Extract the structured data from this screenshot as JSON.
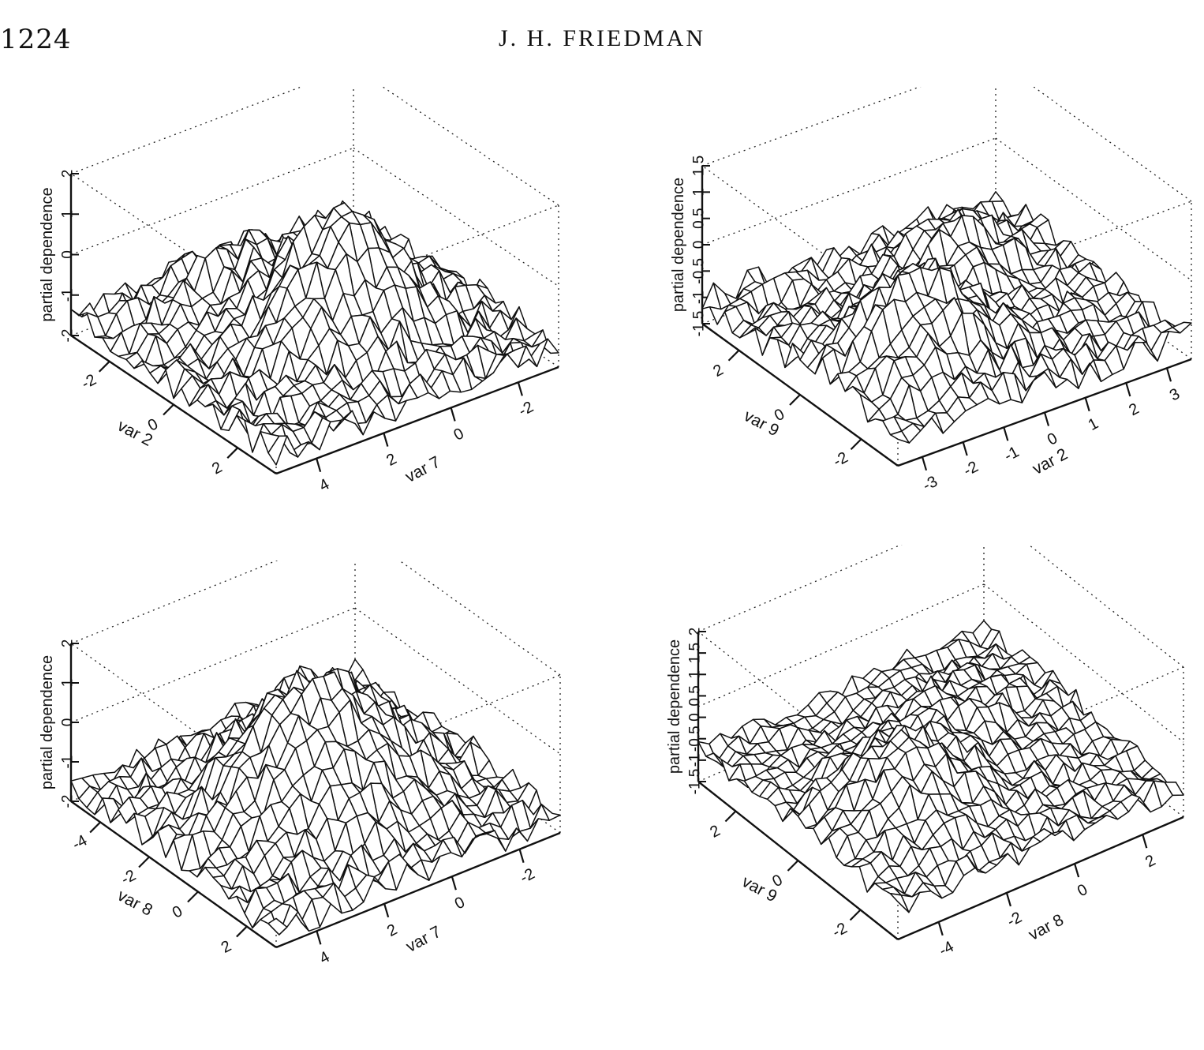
{
  "header": {
    "page_number": "1224",
    "author": "J. H. FRIEDMAN"
  },
  "chart_data": [
    {
      "type": "surface",
      "zlabel": "partial dependence",
      "zticks": [
        "-2",
        "-1",
        "0",
        "1",
        "2"
      ],
      "zrange": [
        -2,
        2
      ],
      "left_axis": {
        "label": "var 2",
        "ticks": [
          "-2",
          "0",
          "2"
        ]
      },
      "right_axis": {
        "label": "var 7",
        "ticks": [
          "4",
          "2",
          "0",
          "-2"
        ]
      }
    },
    {
      "type": "surface",
      "zlabel": "partial dependence",
      "zticks": [
        "-1.5",
        "-1",
        "-0.5",
        "0",
        "0.5",
        "1",
        "1.5"
      ],
      "zrange": [
        -1.5,
        1.5
      ],
      "left_axis": {
        "label": "var 9",
        "ticks": [
          "2",
          "0",
          "-2"
        ]
      },
      "right_axis": {
        "label": "var 2",
        "ticks": [
          "-3",
          "-2",
          "-1",
          "0",
          "1",
          "2",
          "3"
        ]
      }
    },
    {
      "type": "surface",
      "zlabel": "partial dependence",
      "zticks": [
        "-2",
        "-1",
        "0",
        "1",
        "2"
      ],
      "zrange": [
        -2,
        2
      ],
      "left_axis": {
        "label": "var 8",
        "ticks": [
          "-4",
          "-2",
          "0",
          "2"
        ]
      },
      "right_axis": {
        "label": "var 7",
        "ticks": [
          "4",
          "2",
          "0",
          "-2"
        ]
      }
    },
    {
      "type": "surface",
      "zlabel": "partial dependence",
      "zticks": [
        "-1.5",
        "-1",
        "-0.5",
        "0",
        "0.5",
        "1",
        "1.5",
        "2"
      ],
      "zrange": [
        -1.5,
        2
      ],
      "left_axis": {
        "label": "var 9",
        "ticks": [
          "2",
          "0",
          "-2"
        ]
      },
      "right_axis": {
        "label": "var 8",
        "ticks": [
          "-4",
          "-2",
          "0",
          "2"
        ]
      }
    }
  ]
}
